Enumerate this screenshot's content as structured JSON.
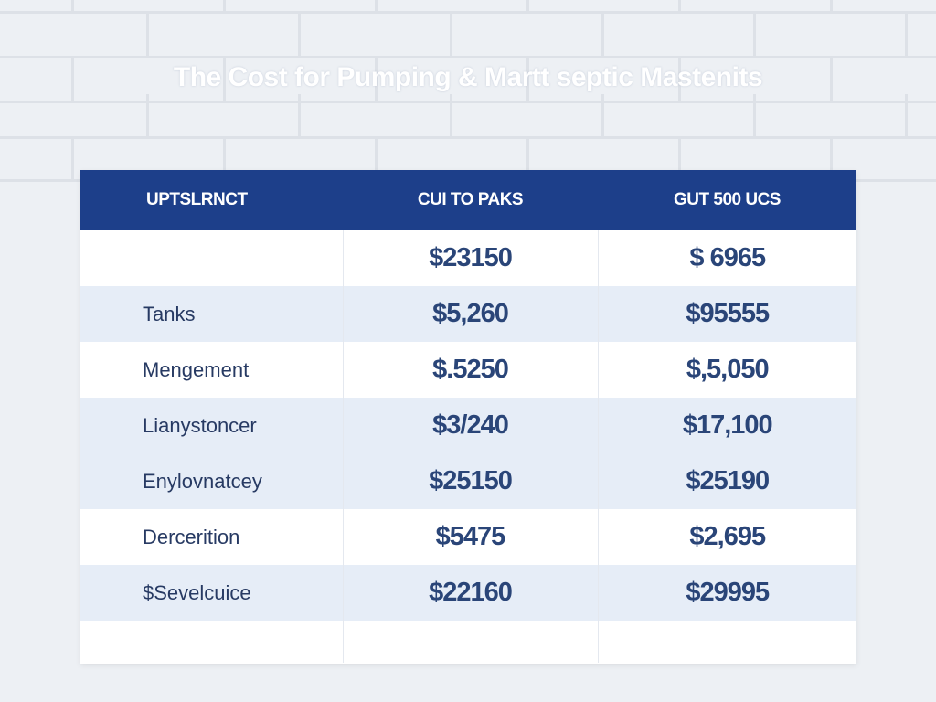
{
  "title": "The Cost for Pumping & Martt septic Mastenits",
  "table": {
    "headers": [
      "UPTSLRNCT",
      "CUI TO PAKS",
      "GUT 500 UCS"
    ],
    "rows": [
      {
        "label": "",
        "col2": "$23150",
        "col3": "$ 6965"
      },
      {
        "label": "Tanks",
        "col2": "$5,260",
        "col3": "$95555"
      },
      {
        "label": "Mengement",
        "col2": "$.5250",
        "col3": "$,5,050"
      },
      {
        "label": "Lianystoncer",
        "col2": "$3/240",
        "col3": "$17,100"
      },
      {
        "label": "Enylovnatcey",
        "col2": "$25150",
        "col3": "$25190"
      },
      {
        "label": "Dercerition",
        "col2": "$5475",
        "col3": "$2,695"
      },
      {
        "label": "$Sevelcuice",
        "col2": "$22160",
        "col3": "$29995"
      },
      {
        "label": "",
        "col2": "",
        "col3": ""
      }
    ]
  },
  "colors": {
    "header_bg": "#1d3f8a",
    "stripe": "#e6edf7",
    "value_text": "#2a4578"
  }
}
